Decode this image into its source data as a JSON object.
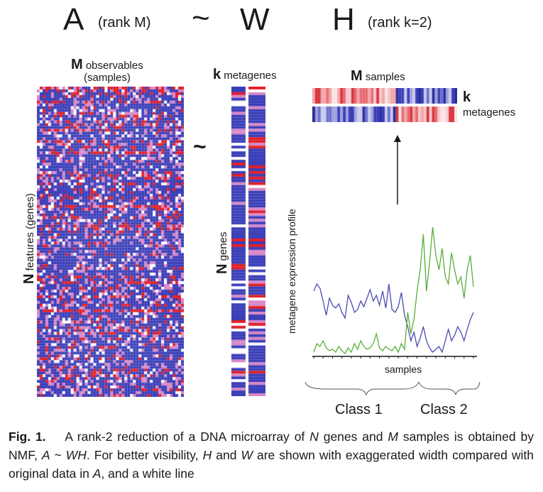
{
  "equation": {
    "a": "A",
    "a_sub": "(rank M)",
    "tilde": "~",
    "w": "W",
    "h": "H",
    "h_sub": "(rank k=2)"
  },
  "matrix_a": {
    "top_label_m": "M",
    "top_label_rest_1": "observables",
    "top_label_rest_2": "(samples)",
    "side_label_n": "N",
    "side_label_rest": "features (genes)",
    "tilde": "~"
  },
  "matrix_w": {
    "top_label_k": "k",
    "top_label_rest": "metagenes",
    "side_label_n": "N",
    "side_label_rest": "genes"
  },
  "matrix_h": {
    "top_label_m": "M",
    "top_label_rest": "samples",
    "side_label_k": "k",
    "side_label_rest": "metagenes"
  },
  "colors": {
    "blue": "#3b3fb8",
    "red": "#e0202a",
    "white": "#ffffff",
    "pink": "#d889c8",
    "line_blue": "#4a4ab0",
    "line_green": "#5aad3a"
  },
  "profile_plot": {
    "ylabel": "metagene expression profile",
    "xlabel": "samples",
    "class1": "Class 1",
    "class2": "Class 2",
    "chart_data": {
      "type": "line",
      "series": [
        {
          "name": "",
          "color": "#4a4ab0",
          "values": [
            0.45,
            0.5,
            0.47,
            0.38,
            0.28,
            0.4,
            0.35,
            0.33,
            0.36,
            0.3,
            0.26,
            0.42,
            0.37,
            0.3,
            0.32,
            0.38,
            0.34,
            0.4,
            0.46,
            0.38,
            0.42,
            0.35,
            0.45,
            0.33,
            0.5,
            0.32,
            0.3,
            0.34,
            0.44,
            0.28,
            0.2,
            0.1,
            0.16,
            0.06,
            0.12,
            0.2,
            0.1,
            0.05,
            0.02,
            0.04,
            0.06,
            0.02,
            0.1,
            0.18,
            0.1,
            0.14,
            0.2,
            0.16,
            0.1,
            0.18,
            0.25,
            0.3
          ]
        },
        {
          "name": "",
          "color": "#5aad3a",
          "values": [
            0.02,
            0.08,
            0.06,
            0.1,
            0.05,
            0.03,
            0.04,
            0.02,
            0.06,
            0.03,
            0.01,
            0.05,
            0.02,
            0.08,
            0.04,
            0.1,
            0.06,
            0.04,
            0.05,
            0.08,
            0.15,
            0.05,
            0.03,
            0.06,
            0.04,
            0.03,
            0.06,
            0.02,
            0.08,
            0.04,
            0.3,
            0.15,
            0.25,
            0.45,
            0.6,
            0.85,
            0.45,
            0.65,
            0.9,
            0.7,
            0.6,
            0.75,
            0.55,
            0.5,
            0.72,
            0.6,
            0.5,
            0.55,
            0.4,
            0.6,
            0.7,
            0.48
          ]
        }
      ],
      "xlabel": "samples",
      "ylabel": "metagene expression profile",
      "grid": false,
      "legend": "none"
    }
  },
  "caption": {
    "fig": "Fig. 1.",
    "text_1": "A rank-2 reduction of a DNA microarray of",
    "n1": "N",
    "text_2": "genes and",
    "m1": "M",
    "text_3": "samples is obtained by NMF,",
    "a1": "A",
    "tilde": "~",
    "wh": "WH",
    "text_4": ". For better visibility,",
    "h1": "H",
    "text_5": "and",
    "w1": "W",
    "text_6": "are shown with exaggerated width compared with original data in",
    "a2": "A",
    "text_7": ", and a white line"
  }
}
